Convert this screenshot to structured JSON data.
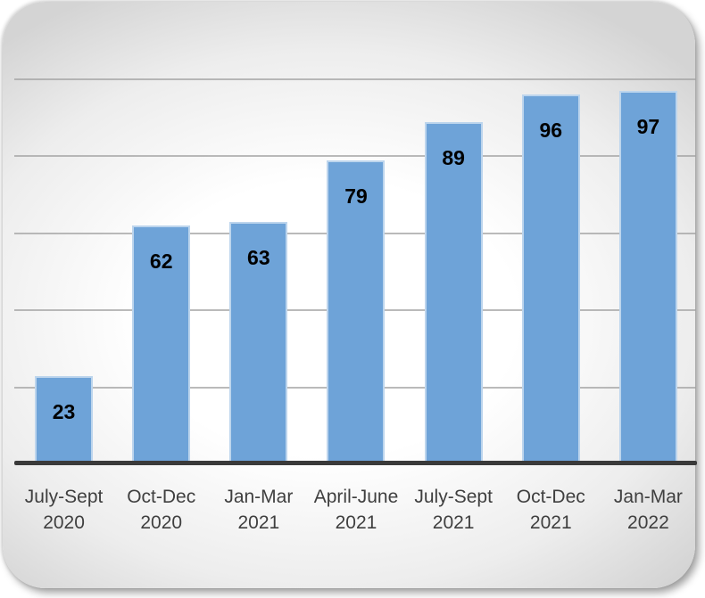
{
  "chart_data": {
    "type": "bar",
    "categories": [
      [
        "July-Sept",
        "2020"
      ],
      [
        "Oct-Dec",
        "2020"
      ],
      [
        "Jan-Mar",
        "2021"
      ],
      [
        "April-June",
        "2021"
      ],
      [
        "July-Sept",
        "2021"
      ],
      [
        "Oct-Dec",
        "2021"
      ],
      [
        "Jan-Mar",
        "2022"
      ]
    ],
    "values": [
      23,
      62,
      63,
      79,
      89,
      96,
      97
    ],
    "title": "",
    "xlabel": "",
    "ylabel": "",
    "ylim": [
      0,
      100
    ],
    "gridline_values": [
      20,
      40,
      60,
      80,
      100
    ],
    "grid": "horizontal",
    "legend": "none",
    "data_labels": "inside-end",
    "colors": {
      "bar_fill": "#6ea3d8",
      "bar_edge": "#cfe0f2",
      "data_label": "#000000",
      "gridline": "#a3a3a3",
      "axis_line": "#3a3a3a",
      "category_label": "#3f3f3f",
      "panel_center": "#ffffff",
      "panel_edge": "#d4d4d4"
    }
  }
}
